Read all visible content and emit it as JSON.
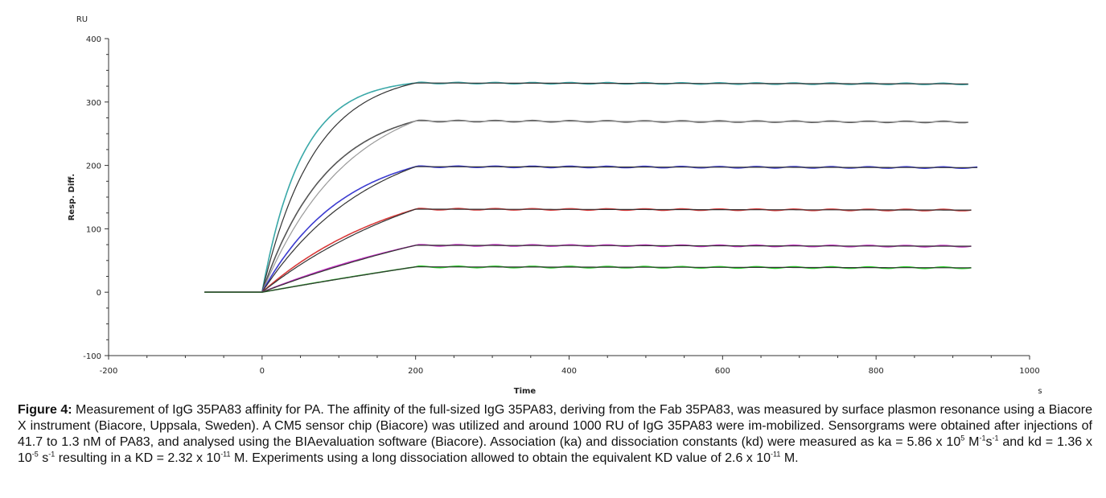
{
  "chart_data": {
    "type": "line",
    "title": "",
    "xlabel": "Time",
    "xunit": "s",
    "ylabel": "Resp. Diff.",
    "yunit": "RU",
    "xlim": [
      -200,
      1000
    ],
    "ylim": [
      -100,
      400
    ],
    "x_ticks": [
      -200,
      0,
      200,
      400,
      600,
      800,
      1000
    ],
    "y_ticks": [
      -100,
      0,
      100,
      200,
      300,
      400
    ],
    "grid": false,
    "legend": "none",
    "series": [
      {
        "color": "#3aa8a8",
        "fit_color": "#333333",
        "baseline_start": -75,
        "association_end": 200,
        "plateau": 330,
        "end_x": 920,
        "rate": 0.0195
      },
      {
        "color": "#555555",
        "fit_color": "#9a9a9a",
        "baseline_start": -75,
        "association_end": 200,
        "plateau": 270,
        "end_x": 920,
        "rate": 0.012
      },
      {
        "color": "#3b3bd0",
        "fit_color": "#333333",
        "baseline_start": -75,
        "association_end": 200,
        "plateau": 198,
        "end_x": 935,
        "rate": 0.0095
      },
      {
        "color": "#d83a3a",
        "fit_color": "#333333",
        "baseline_start": -75,
        "association_end": 200,
        "plateau": 131,
        "end_x": 925,
        "rate": 0.0055
      },
      {
        "color": "#c030c0",
        "fit_color": "#333333",
        "baseline_start": -75,
        "association_end": 200,
        "plateau": 74,
        "end_x": 925,
        "rate": 0.003
      },
      {
        "color": "#22cc22",
        "fit_color": "#333333",
        "baseline_start": -75,
        "association_end": 200,
        "plateau": 40,
        "end_x": 925,
        "rate": 0.001
      }
    ]
  },
  "caption": {
    "label": "Figure 4:",
    "p1": " Measurement of IgG 35PA83 affinity for PA. The affinity of the full-sized IgG 35PA83, deriving from the Fab 35PA83, was measured by surface plasmon resonance using a Biacore X instrument (Biacore, Uppsala, Sweden). A CM5 sensor chip (Biacore) was utilized and around 1000 RU of IgG 35PA83 were im-mobilized. Sensorgrams were obtained after injections of 41.7 to 1.3 nM of PA83, and analysed using the BIAevaluation software (Biacore). Association (ka) and dissociation constants (kd) were measured as ka = 5.86 x 10",
    "sup1": "5",
    "p2": " M",
    "sup2": "-1",
    "p3": "s",
    "sup3": "-1",
    "p4": " and kd = 1.36 x 10",
    "sup4": "-5",
    "p5": " s",
    "sup5": "-1",
    "p6": " resulting in a KD = 2.32 x 10",
    "sup6": "-11",
    "p7": " M. Experiments using a long dissociation allowed to obtain the equivalent KD value of 2.6 x 10",
    "sup7": "-11",
    "p8": " M."
  }
}
